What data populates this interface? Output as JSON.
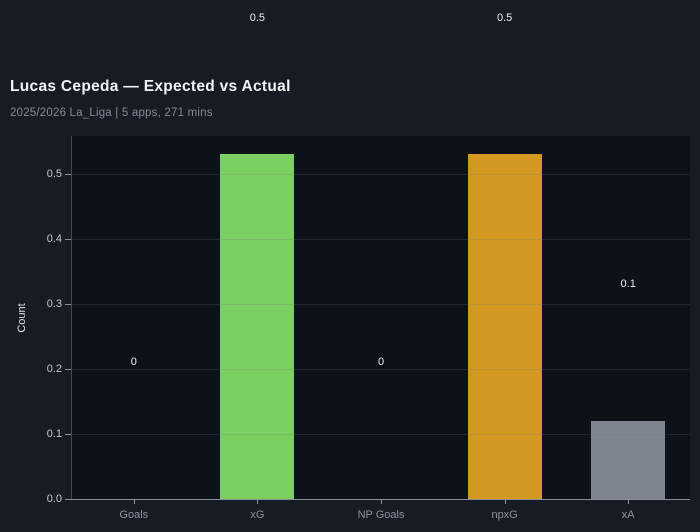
{
  "header": {
    "title": "Lucas Cepeda — Expected vs Actual",
    "subtitle": "2025/2026 La_Liga | 5 apps, 271 mins"
  },
  "chart_data": {
    "type": "bar",
    "title": "Lucas Cepeda — Expected vs Actual",
    "subtitle": "2025/2026 La_Liga | 5 apps, 271 mins",
    "categories": [
      "Goals",
      "xG",
      "NP Goals",
      "npxG",
      "xA"
    ],
    "values": [
      0,
      0.53,
      0,
      0.53,
      0.12
    ],
    "value_labels": [
      "0",
      "0.5",
      "0",
      "0.5",
      "0.1"
    ],
    "bar_colors": [
      "#7bce62",
      "#7bce62",
      "#d39821",
      "#d39821",
      "#7e858f"
    ],
    "xlabel": "",
    "ylabel": "Count",
    "yticks": [
      "0.0",
      "0.1",
      "0.2",
      "0.3",
      "0.4",
      "0.5"
    ],
    "ylim": [
      0,
      0.558
    ],
    "grid": true,
    "legend": false,
    "label_offset": 0.21
  },
  "colors": {
    "figure_bg": "#171b23",
    "plot_bg": "#0d1118",
    "grid_line": "rgba(110,118,130,0.22)",
    "spine": "#8a909a",
    "left_spine": "#454b55",
    "title_text": "#f1f3f6",
    "subtitle_text": "#868c96",
    "ytick_text": "#c4c8cf",
    "xtick_text": "#8f959f",
    "value_text": "#eceff3",
    "ylabel_text": "#dde0e5"
  }
}
